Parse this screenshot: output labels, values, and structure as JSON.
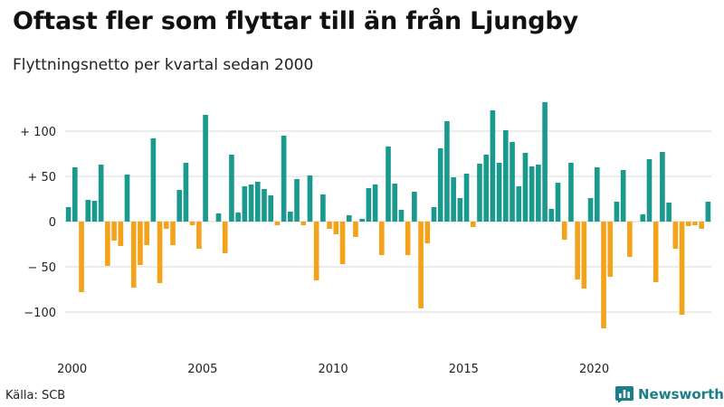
{
  "header": {
    "title": "Oftast fler som flyttar till än från Ljungby",
    "subtitle": "Flyttningsnetto per kvartal sedan 2000"
  },
  "footer": {
    "source": "Källa: SCB",
    "brand": "Newsworthy",
    "brand_icon": "bar-chart-icon"
  },
  "colors": {
    "positive": "#1a9a8f",
    "negative": "#f5a21b",
    "grid": "#d9d9d9",
    "brand": "#1a7f86"
  },
  "chart_data": {
    "type": "bar",
    "title": "Oftast fler som flyttar till än från Ljungby",
    "subtitle": "Flyttningsnetto per kvartal sedan 2000",
    "ylim": [
      -140,
      140
    ],
    "yticks": [
      100,
      50,
      0,
      -50,
      -100
    ],
    "ytick_labels": [
      "+ 100",
      "+  50",
      "0",
      "− 50",
      "−100"
    ],
    "xticks": [
      "2000",
      "2005",
      "2010",
      "2015",
      "2020"
    ],
    "grid": true,
    "start_year": 2000,
    "values": [
      16,
      60,
      -78,
      24,
      23,
      63,
      -49,
      -21,
      -27,
      52,
      -73,
      -48,
      -26,
      92,
      -68,
      -8,
      -26,
      35,
      65,
      -4,
      -30,
      118,
      0,
      9,
      -35,
      74,
      10,
      39,
      41,
      44,
      36,
      29,
      -4,
      95,
      11,
      47,
      -4,
      51,
      -65,
      30,
      -8,
      -14,
      -47,
      7,
      -17,
      3,
      37,
      41,
      -37,
      83,
      42,
      13,
      -37,
      33,
      -96,
      -24,
      16,
      81,
      111,
      49,
      26,
      53,
      -6,
      64,
      74,
      123,
      65,
      101,
      88,
      39,
      76,
      61,
      63,
      132,
      14,
      43,
      -20,
      65,
      -64,
      -74,
      26,
      60,
      -118,
      -61,
      22,
      57,
      -39,
      0,
      8,
      69,
      -67,
      77,
      21,
      -30,
      -103,
      -5,
      -4,
      -8,
      22
    ]
  }
}
